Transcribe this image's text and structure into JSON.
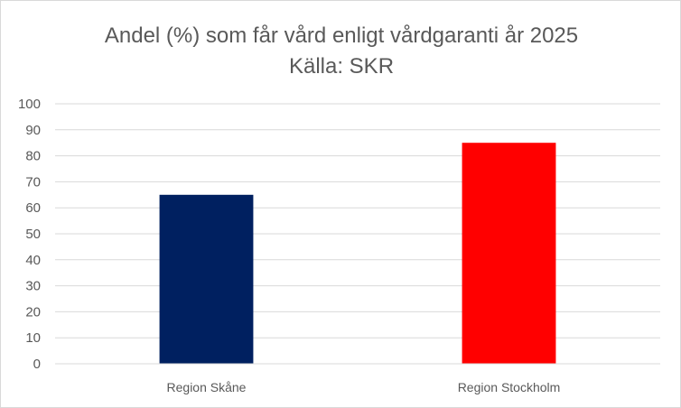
{
  "chart_data": {
    "type": "bar",
    "title": "Andel (%) som får vård enligt vårdgaranti år 2025",
    "subtitle": "Källa: SKR",
    "categories": [
      "Region Skåne",
      "Region Stockholm"
    ],
    "values": [
      65,
      85
    ],
    "bar_colors": [
      "#002060",
      "#ff0000"
    ],
    "ylim": [
      0,
      100
    ],
    "yticks": [
      0,
      10,
      20,
      30,
      40,
      50,
      60,
      70,
      80,
      90,
      100
    ],
    "grid": true,
    "legend": "none"
  }
}
